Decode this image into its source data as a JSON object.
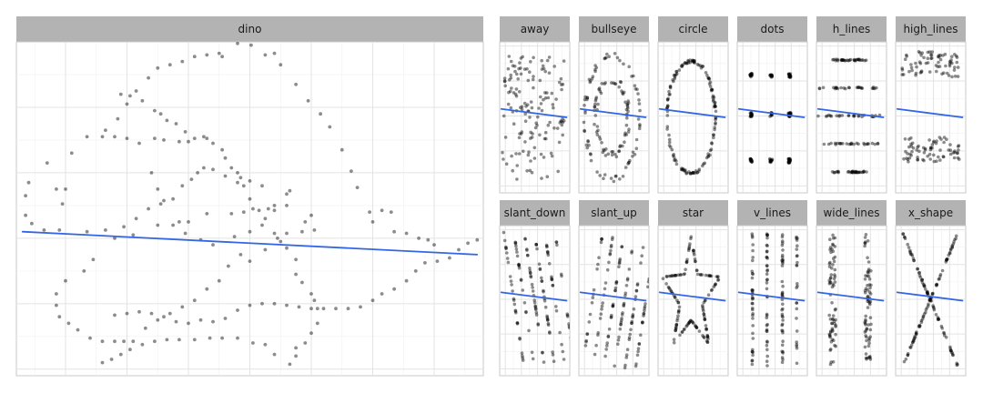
{
  "figure": {
    "background": "#ffffff",
    "panel_border": "#c8c8c8",
    "strip_fill": "#b3b3b3",
    "grid_major": "#e3e3e3",
    "grid_minor": "#f0f0f0",
    "point_color": "#000000",
    "point_alpha": 0.45,
    "fit_line_color": "#3366e6",
    "show_axis_labels": false,
    "grid": true
  },
  "chart_data": [
    {
      "type": "scatter",
      "name": "dino",
      "xlim": [
        22,
        98
      ],
      "ylim": [
        -2,
        100
      ],
      "x_breaks": [
        30,
        40,
        50,
        60,
        70,
        80,
        90
      ],
      "y_breaks": [
        0,
        20,
        40,
        60,
        80
      ],
      "fit_line": {
        "x": [
          23,
          97
        ],
        "y": [
          42.0,
          35.0
        ]
      },
      "points": [
        [
          60.2,
          99.0
        ],
        [
          55.0,
          96.5
        ],
        [
          53.0,
          96.0
        ],
        [
          51.0,
          95.5
        ],
        [
          49.0,
          94.0
        ],
        [
          47.0,
          93.0
        ],
        [
          45.0,
          92.0
        ],
        [
          43.5,
          89.0
        ],
        [
          41.5,
          85.0
        ],
        [
          40.0,
          81.0
        ],
        [
          38.5,
          76.5
        ],
        [
          36.5,
          73.0
        ],
        [
          33.5,
          71.0
        ],
        [
          31.0,
          66.0
        ],
        [
          27.0,
          63.0
        ],
        [
          24.0,
          57.0
        ],
        [
          23.5,
          53.0
        ],
        [
          23.5,
          47.0
        ],
        [
          24.5,
          44.5
        ],
        [
          26.5,
          42.5
        ],
        [
          29.0,
          42.5
        ],
        [
          33.5,
          42.0
        ],
        [
          36.5,
          42.5
        ],
        [
          38.0,
          40.0
        ],
        [
          41.0,
          41.0
        ],
        [
          45.0,
          44.0
        ],
        [
          47.5,
          44.0
        ],
        [
          49.5,
          41.5
        ],
        [
          52.0,
          39.5
        ],
        [
          54.0,
          38.0
        ],
        [
          57.5,
          40.5
        ],
        [
          60.0,
          42.0
        ],
        [
          62.0,
          44.0
        ],
        [
          64.0,
          48.5
        ],
        [
          66.0,
          53.5
        ],
        [
          66.5,
          54.5
        ],
        [
          63.0,
          49.0
        ],
        [
          60.5,
          49.0
        ],
        [
          59.0,
          48.0
        ],
        [
          57.0,
          47.5
        ],
        [
          53.0,
          47.5
        ],
        [
          50.0,
          45.0
        ],
        [
          48.5,
          45.0
        ],
        [
          46.0,
          51.5
        ],
        [
          45.0,
          55.0
        ],
        [
          44.0,
          60.0
        ],
        [
          42.0,
          69.0
        ],
        [
          40.0,
          70.5
        ],
        [
          38.0,
          71.0
        ],
        [
          36.0,
          71.0
        ],
        [
          28.5,
          55.0
        ],
        [
          30.0,
          55.0
        ],
        [
          29.5,
          50.5
        ],
        [
          34.5,
          33.5
        ],
        [
          33.0,
          30.0
        ],
        [
          30.0,
          27.0
        ],
        [
          28.5,
          23.0
        ],
        [
          28.5,
          19.5
        ],
        [
          29.0,
          16.0
        ],
        [
          30.5,
          14.0
        ],
        [
          32.0,
          12.0
        ],
        [
          34.0,
          9.5
        ],
        [
          36.0,
          8.5
        ],
        [
          38.0,
          8.5
        ],
        [
          39.5,
          8.5
        ],
        [
          41.0,
          8.5
        ],
        [
          43.0,
          12.5
        ],
        [
          45.0,
          15.0
        ],
        [
          47.0,
          17.0
        ],
        [
          49.0,
          19.0
        ],
        [
          51.0,
          21.0
        ],
        [
          53.0,
          24.5
        ],
        [
          55.0,
          27.0
        ],
        [
          56.5,
          31.5
        ],
        [
          58.5,
          35.0
        ],
        [
          60.0,
          33.0
        ],
        [
          62.5,
          36.5
        ],
        [
          64.5,
          40.0
        ],
        [
          66.0,
          41.5
        ],
        [
          68.5,
          42.0
        ],
        [
          70.5,
          42.5
        ],
        [
          69.0,
          45.0
        ],
        [
          70.0,
          47.0
        ],
        [
          66.0,
          50.0
        ],
        [
          64.0,
          50.0
        ],
        [
          62.0,
          56.0
        ],
        [
          60.0,
          57.5
        ],
        [
          58.0,
          57.0
        ],
        [
          56.0,
          59.0
        ],
        [
          54.0,
          61.0
        ],
        [
          52.5,
          61.5
        ],
        [
          51.5,
          60.0
        ],
        [
          50.5,
          58.0
        ],
        [
          49.0,
          56.0
        ],
        [
          47.5,
          52.0
        ],
        [
          45.5,
          50.5
        ],
        [
          43.5,
          49.0
        ],
        [
          41.5,
          46.0
        ],
        [
          39.5,
          43.5
        ],
        [
          44.5,
          70.5
        ],
        [
          46.0,
          70.0
        ],
        [
          48.5,
          69.5
        ],
        [
          50.0,
          69.5
        ],
        [
          51.0,
          70.5
        ],
        [
          52.5,
          71.0
        ],
        [
          49.5,
          72.5
        ],
        [
          48.0,
          75.0
        ],
        [
          46.5,
          76.0
        ],
        [
          45.5,
          78.0
        ],
        [
          44.5,
          79.0
        ],
        [
          42.5,
          82.0
        ],
        [
          40.5,
          83.5
        ],
        [
          39.0,
          84.0
        ],
        [
          53.0,
          70.5
        ],
        [
          54.0,
          69.0
        ],
        [
          55.5,
          67.0
        ],
        [
          56.0,
          64.5
        ],
        [
          57.0,
          61.5
        ],
        [
          58.0,
          60.0
        ],
        [
          58.5,
          58.5
        ],
        [
          59.0,
          56.0
        ],
        [
          60.0,
          52.0
        ],
        [
          61.5,
          48.5
        ],
        [
          62.5,
          46.0
        ],
        [
          64.0,
          41.5
        ],
        [
          65.0,
          39.0
        ],
        [
          66.0,
          37.0
        ],
        [
          67.5,
          33.5
        ],
        [
          67.5,
          29.0
        ],
        [
          68.5,
          26.5
        ],
        [
          70.0,
          23.0
        ],
        [
          70.5,
          21.0
        ],
        [
          71.0,
          18.5
        ],
        [
          71.0,
          14.0
        ],
        [
          70.0,
          11.0
        ],
        [
          69.0,
          8.0
        ],
        [
          67.5,
          6.5
        ],
        [
          67.5,
          4.0
        ],
        [
          66.5,
          1.5
        ],
        [
          64.0,
          4.5
        ],
        [
          62.5,
          7.5
        ],
        [
          60.5,
          8.0
        ],
        [
          58.0,
          9.5
        ],
        [
          55.5,
          9.5
        ],
        [
          53.5,
          9.5
        ],
        [
          51.0,
          9.0
        ],
        [
          48.5,
          9.0
        ],
        [
          46.5,
          9.0
        ],
        [
          44.5,
          8.5
        ],
        [
          42.5,
          7.5
        ],
        [
          40.5,
          6.0
        ],
        [
          39.0,
          4.5
        ],
        [
          37.5,
          3.0
        ],
        [
          36.0,
          2.0
        ],
        [
          38.0,
          16.5
        ],
        [
          40.0,
          17.0
        ],
        [
          42.0,
          17.5
        ],
        [
          44.0,
          17.0
        ],
        [
          46.0,
          16.0
        ],
        [
          48.0,
          14.5
        ],
        [
          50.0,
          14.0
        ],
        [
          52.0,
          15.0
        ],
        [
          54.0,
          14.5
        ],
        [
          56.0,
          15.5
        ],
        [
          58.0,
          18.0
        ],
        [
          60.0,
          19.5
        ],
        [
          62.0,
          20.0
        ],
        [
          64.0,
          20.0
        ],
        [
          66.0,
          19.5
        ],
        [
          68.0,
          19.0
        ],
        [
          70.0,
          18.5
        ],
        [
          72.0,
          18.5
        ],
        [
          74.0,
          18.5
        ],
        [
          76.0,
          18.5
        ],
        [
          78.0,
          19.0
        ],
        [
          80.0,
          21.0
        ],
        [
          81.5,
          23.0
        ],
        [
          83.5,
          24.5
        ],
        [
          85.5,
          27.0
        ],
        [
          87.0,
          30.0
        ],
        [
          88.5,
          32.5
        ],
        [
          90.5,
          33.0
        ],
        [
          92.5,
          34.0
        ],
        [
          94.0,
          36.5
        ],
        [
          95.5,
          38.5
        ],
        [
          97.0,
          39.5
        ],
        [
          77.5,
          55.5
        ],
        [
          76.5,
          60.5
        ],
        [
          75.0,
          67.0
        ],
        [
          73.0,
          74.0
        ],
        [
          71.5,
          78.0
        ],
        [
          69.5,
          82.0
        ],
        [
          67.5,
          87.0
        ],
        [
          65.0,
          93.0
        ],
        [
          62.5,
          96.0
        ],
        [
          64.0,
          96.5
        ],
        [
          58.0,
          99.5
        ],
        [
          55.5,
          95.5
        ],
        [
          79.5,
          48.0
        ],
        [
          83.0,
          48.0
        ],
        [
          81.5,
          48.5
        ],
        [
          80.0,
          45.0
        ],
        [
          83.5,
          42.0
        ],
        [
          85.5,
          41.5
        ],
        [
          87.5,
          40.0
        ],
        [
          89.0,
          39.5
        ],
        [
          90.0,
          38.0
        ]
      ]
    },
    {
      "type": "scatter",
      "name": "away",
      "xlim": [
        13,
        100
      ],
      "ylim": [
        -5,
        103
      ],
      "x_breaks": [
        20,
        40,
        60,
        80
      ],
      "y_breaks": [
        0,
        25,
        50,
        75,
        100
      ],
      "fit_line": {
        "x": [
          15,
          96
        ],
        "y": [
          55,
          49
        ]
      },
      "points": []
    },
    {
      "type": "scatter",
      "name": "bullseye",
      "xlim": [
        13,
        100
      ],
      "ylim": [
        -5,
        103
      ],
      "x_breaks": [
        20,
        40,
        60,
        80
      ],
      "y_breaks": [
        0,
        25,
        50,
        75,
        100
      ],
      "fit_line": {
        "x": [
          15,
          96
        ],
        "y": [
          55,
          49
        ]
      },
      "points": []
    },
    {
      "type": "scatter",
      "name": "circle",
      "xlim": [
        13,
        100
      ],
      "ylim": [
        -5,
        103
      ],
      "x_breaks": [
        20,
        40,
        60,
        80
      ],
      "y_breaks": [
        0,
        25,
        50,
        75,
        100
      ],
      "fit_line": {
        "x": [
          15,
          96
        ],
        "y": [
          55,
          49
        ]
      },
      "points": []
    },
    {
      "type": "scatter",
      "name": "dots",
      "xlim": [
        13,
        100
      ],
      "ylim": [
        -5,
        103
      ],
      "x_breaks": [
        20,
        40,
        60,
        80
      ],
      "y_breaks": [
        0,
        25,
        50,
        75,
        100
      ],
      "fit_line": {
        "x": [
          15,
          96
        ],
        "y": [
          55,
          49
        ]
      },
      "points": []
    },
    {
      "type": "scatter",
      "name": "h_lines",
      "xlim": [
        13,
        100
      ],
      "ylim": [
        -5,
        103
      ],
      "x_breaks": [
        20,
        40,
        60,
        80
      ],
      "y_breaks": [
        0,
        25,
        50,
        75,
        100
      ],
      "fit_line": {
        "x": [
          15,
          96
        ],
        "y": [
          55,
          49
        ]
      },
      "points": []
    },
    {
      "type": "scatter",
      "name": "high_lines",
      "xlim": [
        13,
        100
      ],
      "ylim": [
        -5,
        103
      ],
      "x_breaks": [
        20,
        40,
        60,
        80
      ],
      "y_breaks": [
        0,
        25,
        50,
        75,
        100
      ],
      "fit_line": {
        "x": [
          15,
          96
        ],
        "y": [
          55,
          49
        ]
      },
      "points": []
    },
    {
      "type": "scatter",
      "name": "slant_down",
      "xlim": [
        13,
        100
      ],
      "ylim": [
        -5,
        103
      ],
      "x_breaks": [
        20,
        40,
        60,
        80
      ],
      "y_breaks": [
        0,
        25,
        50,
        75,
        100
      ],
      "fit_line": {
        "x": [
          15,
          96
        ],
        "y": [
          55,
          49
        ]
      },
      "points": []
    },
    {
      "type": "scatter",
      "name": "slant_up",
      "xlim": [
        13,
        100
      ],
      "ylim": [
        -5,
        103
      ],
      "x_breaks": [
        20,
        40,
        60,
        80
      ],
      "y_breaks": [
        0,
        25,
        50,
        75,
        100
      ],
      "fit_line": {
        "x": [
          15,
          96
        ],
        "y": [
          55,
          49
        ]
      },
      "points": []
    },
    {
      "type": "scatter",
      "name": "star",
      "xlim": [
        13,
        100
      ],
      "ylim": [
        -5,
        103
      ],
      "x_breaks": [
        20,
        40,
        60,
        80
      ],
      "y_breaks": [
        0,
        25,
        50,
        75,
        100
      ],
      "fit_line": {
        "x": [
          15,
          96
        ],
        "y": [
          55,
          49
        ]
      },
      "points": []
    },
    {
      "type": "scatter",
      "name": "v_lines",
      "xlim": [
        13,
        100
      ],
      "ylim": [
        -5,
        103
      ],
      "x_breaks": [
        20,
        40,
        60,
        80
      ],
      "y_breaks": [
        0,
        25,
        50,
        75,
        100
      ],
      "fit_line": {
        "x": [
          15,
          96
        ],
        "y": [
          55,
          49
        ]
      },
      "points": []
    },
    {
      "type": "scatter",
      "name": "wide_lines",
      "xlim": [
        13,
        100
      ],
      "ylim": [
        -5,
        103
      ],
      "x_breaks": [
        20,
        40,
        60,
        80
      ],
      "y_breaks": [
        0,
        25,
        50,
        75,
        100
      ],
      "fit_line": {
        "x": [
          15,
          96
        ],
        "y": [
          55,
          49
        ]
      },
      "points": []
    },
    {
      "type": "scatter",
      "name": "x_shape",
      "xlim": [
        13,
        100
      ],
      "ylim": [
        -5,
        103
      ],
      "x_breaks": [
        20,
        40,
        60,
        80
      ],
      "y_breaks": [
        0,
        25,
        50,
        75,
        100
      ],
      "fit_line": {
        "x": [
          15,
          96
        ],
        "y": [
          55,
          49
        ]
      },
      "points": []
    }
  ]
}
